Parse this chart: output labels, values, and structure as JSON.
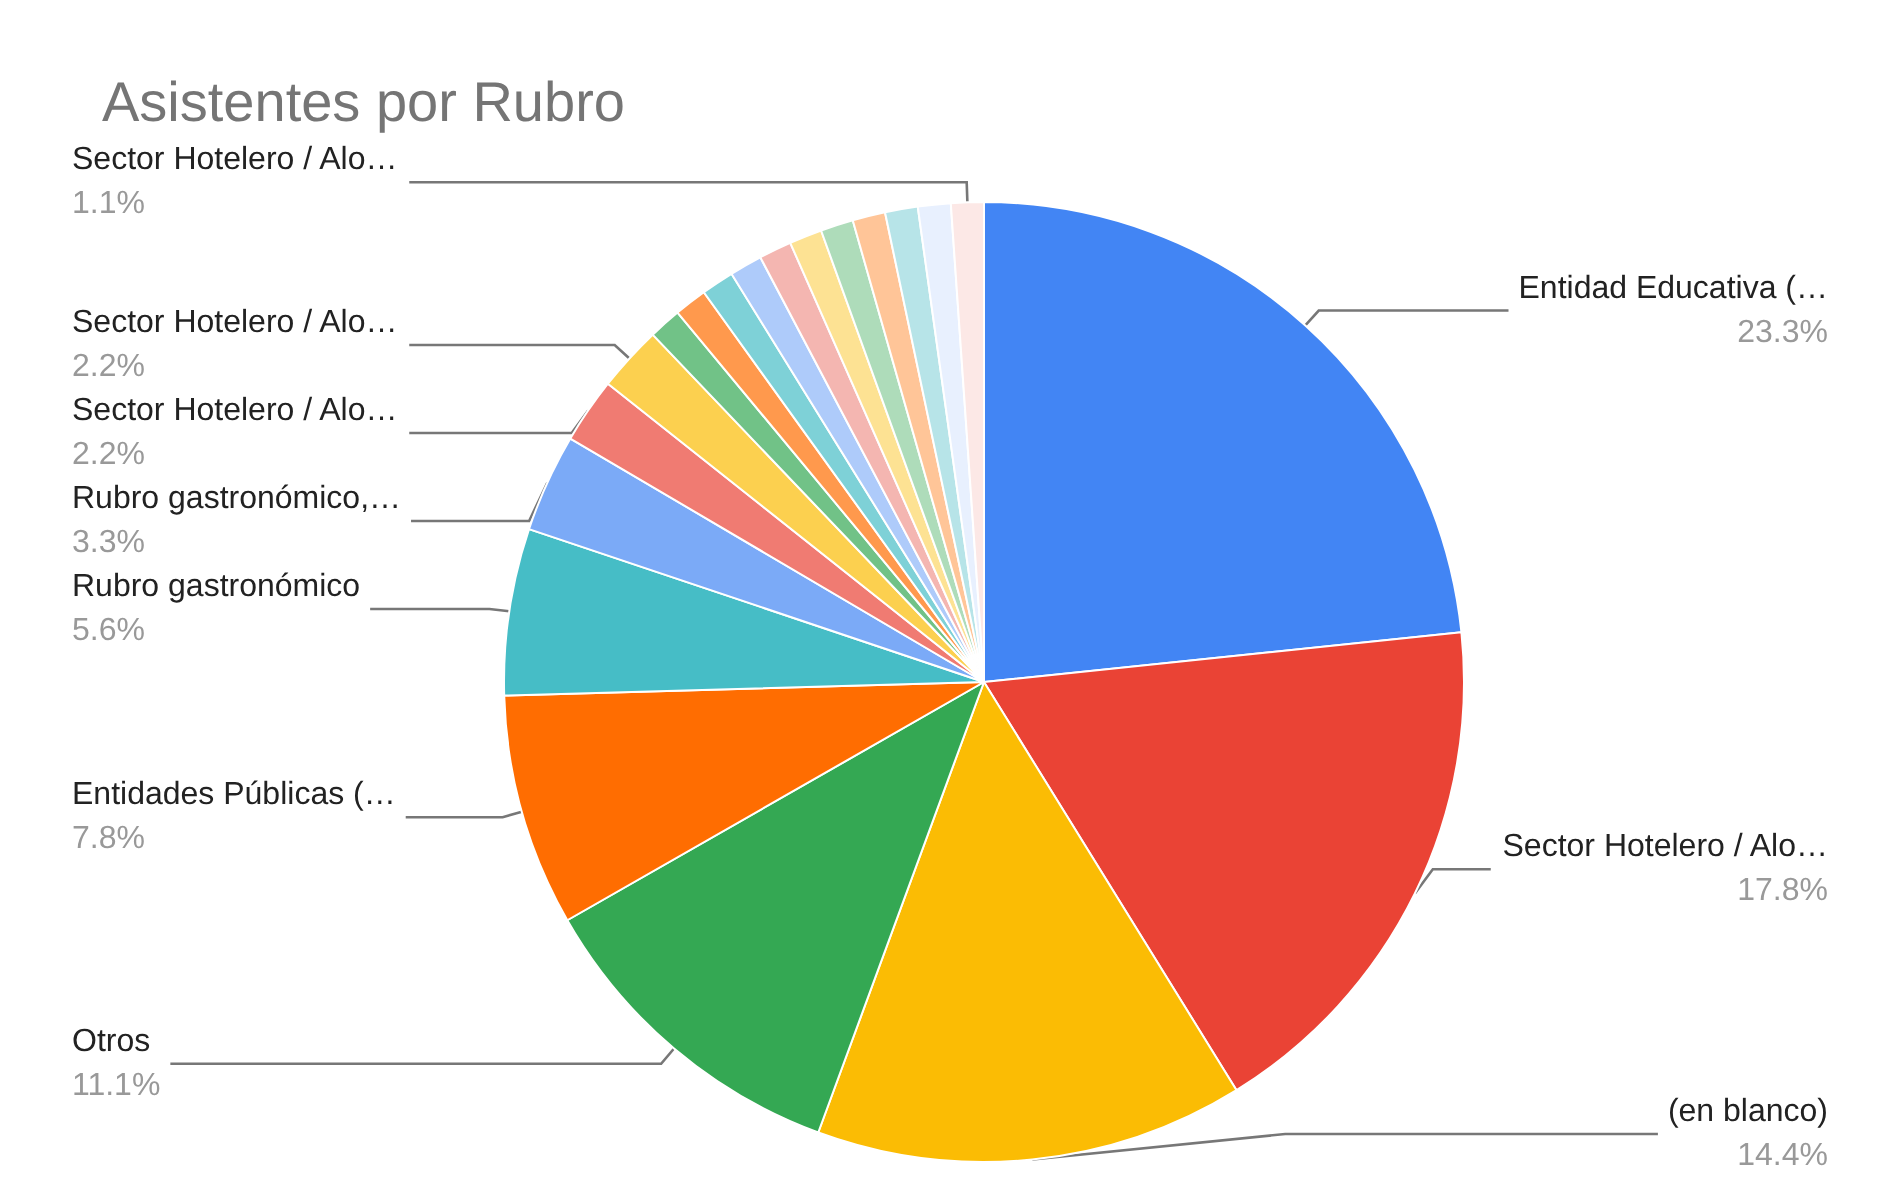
{
  "chart_data": {
    "type": "pie",
    "title": "Asistentes por Rubro",
    "categories": [
      "Entidad Educativa (…",
      "Sector Hotelero / Alo…",
      "(en blanco)",
      "Otros",
      "Entidades Públicas (…",
      "Rubro gastronómico",
      "Rubro gastronómico,…",
      "Sector Hotelero / Alo…",
      "Sector Hotelero / Alo…",
      null,
      null,
      null,
      null,
      null,
      null,
      null,
      null,
      null,
      null,
      "Sector Hotelero / Alo…"
    ],
    "values": [
      23.3,
      17.8,
      14.4,
      11.1,
      7.8,
      5.6,
      3.3,
      2.2,
      2.2,
      1.1,
      1.1,
      1.1,
      1.1,
      1.1,
      1.1,
      1.1,
      1.1,
      1.1,
      1.1,
      1.1
    ],
    "value_labels": [
      "23.3%",
      "17.8%",
      "14.4%",
      "11.1%",
      "7.8%",
      "5.6%",
      "3.3%",
      "2.2%",
      "2.2%",
      null,
      null,
      null,
      null,
      null,
      null,
      null,
      null,
      null,
      null,
      "1.1%"
    ],
    "colors": [
      "#4285f4",
      "#ea4335",
      "#fbbc04",
      "#34a853",
      "#ff6d01",
      "#46bdc6",
      "#7baaf7",
      "#f07b72",
      "#fcd04f",
      "#71c287",
      "#ff994d",
      "#7ed1d7",
      "#aecbfa",
      "#f4b6b1",
      "#fde293",
      "#aedcba",
      "#ffc598",
      "#b7e4e8",
      "#e8f0fe",
      "#fce8e6"
    ],
    "legend": false
  }
}
